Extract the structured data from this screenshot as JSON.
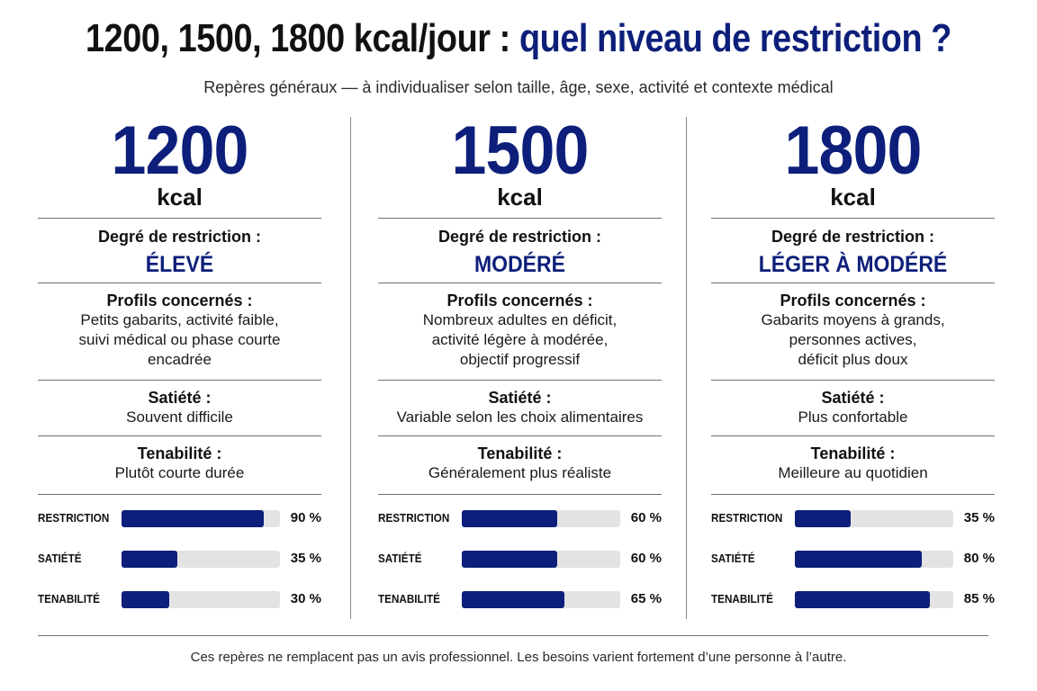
{
  "header": {
    "title_part1": "1200, 1500, 1800 kcal/jour :",
    "title_part2": "quel niveau de restriction ?",
    "subtitle": "Repères généraux — à individualiser selon taille, âge, sexe, activité et contexte médical"
  },
  "columns": [
    {
      "kcal": "1200",
      "unit": "kcal",
      "restriction_label": "Degré de restriction :",
      "restriction_level": "ÉLEVÉ",
      "profiles_label": "Profils concernés :",
      "profiles_lines": [
        "Petits gabarits, activité faible,",
        "suivi médical ou phase courte",
        "encadrée"
      ],
      "satiety_label": "Satiété :",
      "satiety_value": "Souvent difficile",
      "tenability_label": "Tenabilité :",
      "tenability_value": "Plutôt courte durée"
    },
    {
      "kcal": "1500",
      "unit": "kcal",
      "restriction_label": "Degré de restriction :",
      "restriction_level": "MODÉRÉ",
      "profiles_label": "Profils concernés :",
      "profiles_lines": [
        "Nombreux adultes en déficit,",
        "activité légère à modérée,",
        "objectif progressif"
      ],
      "satiety_label": "Satiété :",
      "satiety_value": "Variable selon les choix alimentaires",
      "tenability_label": "Tenabilité :",
      "tenability_value": "Généralement plus réaliste"
    },
    {
      "kcal": "1800",
      "unit": "kcal",
      "restriction_label": "Degré de restriction :",
      "restriction_level": "LÉGER À MODÉRÉ",
      "profiles_label": "Profils concernés :",
      "profiles_lines": [
        "Gabarits moyens à grands,",
        "personnes actives,",
        "déficit plus doux"
      ],
      "satiety_label": "Satiété :",
      "satiety_value": "Plus confortable",
      "tenability_label": "Tenabilité :",
      "tenability_value": "Meilleure au quotidien"
    }
  ],
  "chart_data": {
    "type": "bar",
    "orientation": "horizontal",
    "categories": [
      "RESTRICTION",
      "SATIÉTÉ",
      "TENABILITÉ"
    ],
    "series": [
      {
        "name": "1200",
        "values": [
          90,
          35,
          30
        ],
        "labels": [
          "90 %",
          "35 %",
          "30 %"
        ]
      },
      {
        "name": "1500",
        "values": [
          60,
          60,
          65
        ],
        "labels": [
          "60 %",
          "60 %",
          "65 %"
        ]
      },
      {
        "name": "1800",
        "values": [
          35,
          80,
          85
        ],
        "labels": [
          "35 %",
          "80 %",
          "85 %"
        ]
      }
    ],
    "xlim": [
      0,
      100
    ],
    "bar_color": "#0d1f7a",
    "track_color": "#e3e3e3"
  },
  "footer": {
    "text": "Ces repères ne remplacent pas un avis professionnel. Les besoins varient fortement d’une personne à l’autre."
  },
  "colors": {
    "accent": "#0d1f7a",
    "text": "#111111"
  }
}
